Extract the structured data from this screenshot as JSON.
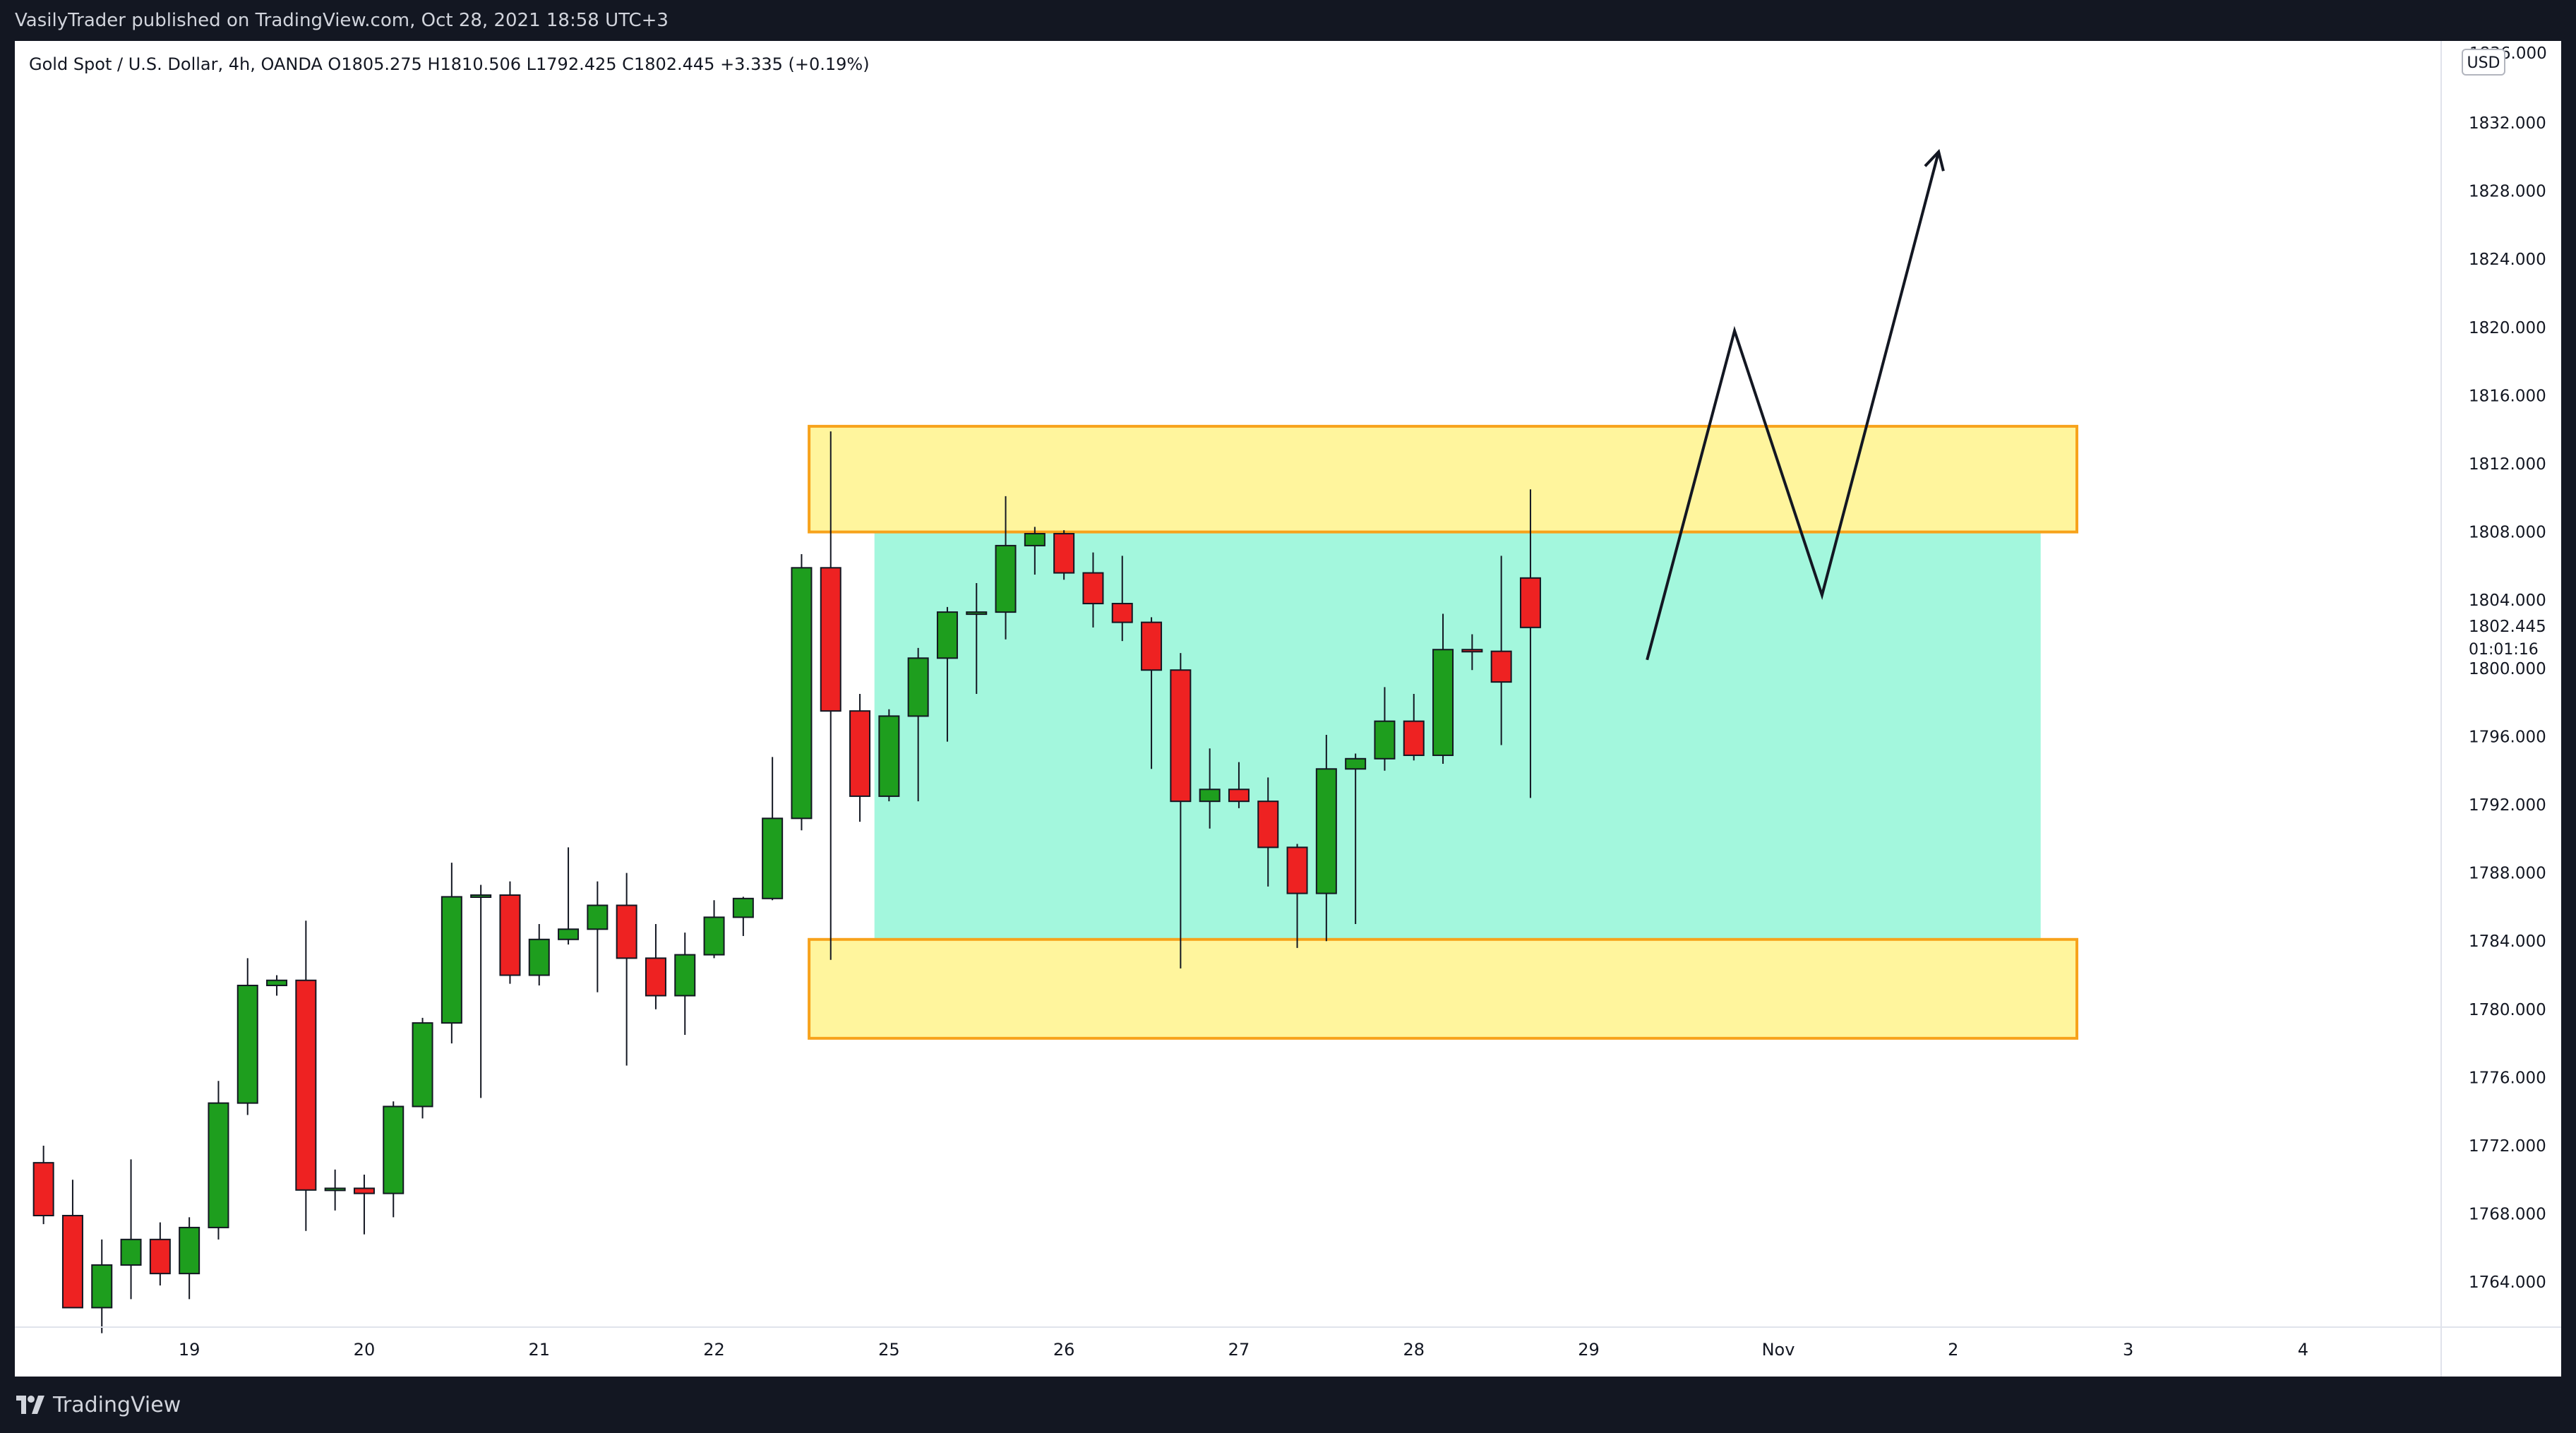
{
  "header": {
    "publisher_text": "VasilyTrader published on TradingView.com, Oct 28, 2021 18:58 UTC+3"
  },
  "legend": {
    "text": "Gold Spot / U.S. Dollar, 4h, OANDA  O1805.275  H1810.506  L1792.425  C1802.445  +3.335 (+0.19%)"
  },
  "price_axis": {
    "currency": "USD",
    "top_label": "1836.000",
    "last_price": "1802.445",
    "countdown": "01:01:16"
  },
  "footer": {
    "brand": "TradingView"
  },
  "colors": {
    "up": "#1e9e1e",
    "down": "#ee2222",
    "zone_fill": "#fff59d",
    "zone_border": "#f7a21b",
    "range_fill": "#a3f7dd",
    "background": "#ffffff",
    "frame": "#131722"
  },
  "chart_data": {
    "type": "candlestick",
    "symbol": "Gold Spot / U.S. Dollar",
    "interval": "4h",
    "exchange": "OANDA",
    "ylim": [
      1760,
      1836
    ],
    "y_ticks": [
      1764,
      1768,
      1772,
      1776,
      1780,
      1784,
      1788,
      1792,
      1796,
      1800,
      1804,
      1808,
      1812,
      1816,
      1820,
      1824,
      1828,
      1832
    ],
    "x_labels": [
      {
        "label": "19",
        "slot": 5
      },
      {
        "label": "20",
        "slot": 11
      },
      {
        "label": "21",
        "slot": 17
      },
      {
        "label": "22",
        "slot": 23
      },
      {
        "label": "25",
        "slot": 29
      },
      {
        "label": "26",
        "slot": 35
      },
      {
        "label": "27",
        "slot": 41
      },
      {
        "label": "28",
        "slot": 47
      },
      {
        "label": "29",
        "slot": 53
      },
      {
        "label": "Nov",
        "slot": 59.5
      },
      {
        "label": "2",
        "slot": 65.5
      },
      {
        "label": "3",
        "slot": 71.5
      },
      {
        "label": "4",
        "slot": 77.5
      }
    ],
    "candles": [
      {
        "o": 1771.0,
        "h": 1772.0,
        "l": 1767.4,
        "c": 1767.9
      },
      {
        "o": 1767.9,
        "h": 1770.0,
        "l": 1763.0,
        "c": 1762.5
      },
      {
        "o": 1762.5,
        "h": 1766.5,
        "l": 1761.0,
        "c": 1765.0
      },
      {
        "o": 1765.0,
        "h": 1771.2,
        "l": 1763.0,
        "c": 1766.5
      },
      {
        "o": 1766.5,
        "h": 1767.5,
        "l": 1763.8,
        "c": 1764.5
      },
      {
        "o": 1764.5,
        "h": 1767.8,
        "l": 1763.0,
        "c": 1767.2
      },
      {
        "o": 1767.2,
        "h": 1775.8,
        "l": 1766.5,
        "c": 1774.5
      },
      {
        "o": 1774.5,
        "h": 1783.0,
        "l": 1773.8,
        "c": 1781.4
      },
      {
        "o": 1781.4,
        "h": 1782.0,
        "l": 1780.8,
        "c": 1781.7
      },
      {
        "o": 1781.7,
        "h": 1785.2,
        "l": 1767.0,
        "c": 1769.4
      },
      {
        "o": 1769.4,
        "h": 1770.6,
        "l": 1768.2,
        "c": 1769.5
      },
      {
        "o": 1769.5,
        "h": 1770.3,
        "l": 1766.8,
        "c": 1769.2
      },
      {
        "o": 1769.2,
        "h": 1774.6,
        "l": 1767.8,
        "c": 1774.3
      },
      {
        "o": 1774.3,
        "h": 1779.5,
        "l": 1773.6,
        "c": 1779.2
      },
      {
        "o": 1779.2,
        "h": 1788.6,
        "l": 1778.0,
        "c": 1786.6
      },
      {
        "o": 1786.6,
        "h": 1787.3,
        "l": 1774.8,
        "c": 1786.7
      },
      {
        "o": 1786.7,
        "h": 1787.5,
        "l": 1781.5,
        "c": 1782.0
      },
      {
        "o": 1782.0,
        "h": 1785.0,
        "l": 1781.4,
        "c": 1784.1
      },
      {
        "o": 1784.1,
        "h": 1789.5,
        "l": 1783.8,
        "c": 1784.7
      },
      {
        "o": 1784.7,
        "h": 1787.5,
        "l": 1781.0,
        "c": 1786.1
      },
      {
        "o": 1786.1,
        "h": 1788.0,
        "l": 1776.7,
        "c": 1783.0
      },
      {
        "o": 1783.0,
        "h": 1785.0,
        "l": 1780.0,
        "c": 1780.8
      },
      {
        "o": 1780.8,
        "h": 1784.5,
        "l": 1778.5,
        "c": 1783.2
      },
      {
        "o": 1783.2,
        "h": 1786.4,
        "l": 1783.0,
        "c": 1785.4
      },
      {
        "o": 1785.4,
        "h": 1786.6,
        "l": 1784.3,
        "c": 1786.5
      },
      {
        "o": 1786.5,
        "h": 1794.8,
        "l": 1786.4,
        "c": 1791.2
      },
      {
        "o": 1791.2,
        "h": 1806.7,
        "l": 1790.5,
        "c": 1805.9
      },
      {
        "o": 1805.9,
        "h": 1813.9,
        "l": 1782.9,
        "c": 1797.5
      },
      {
        "o": 1797.5,
        "h": 1798.5,
        "l": 1791.0,
        "c": 1792.5
      },
      {
        "o": 1792.5,
        "h": 1797.6,
        "l": 1792.2,
        "c": 1797.2
      },
      {
        "o": 1797.2,
        "h": 1801.2,
        "l": 1792.2,
        "c": 1800.6
      },
      {
        "o": 1800.6,
        "h": 1803.6,
        "l": 1795.7,
        "c": 1803.3
      },
      {
        "o": 1803.3,
        "h": 1805.0,
        "l": 1798.5,
        "c": 1803.3
      },
      {
        "o": 1803.3,
        "h": 1810.1,
        "l": 1801.7,
        "c": 1807.2
      },
      {
        "o": 1807.2,
        "h": 1808.3,
        "l": 1805.5,
        "c": 1807.9
      },
      {
        "o": 1807.9,
        "h": 1808.1,
        "l": 1805.2,
        "c": 1805.6
      },
      {
        "o": 1805.6,
        "h": 1806.8,
        "l": 1802.4,
        "c": 1803.8
      },
      {
        "o": 1803.8,
        "h": 1806.6,
        "l": 1801.6,
        "c": 1802.7
      },
      {
        "o": 1802.7,
        "h": 1803.0,
        "l": 1794.1,
        "c": 1799.9
      },
      {
        "o": 1799.9,
        "h": 1800.9,
        "l": 1782.4,
        "c": 1792.2
      },
      {
        "o": 1792.2,
        "h": 1795.3,
        "l": 1790.6,
        "c": 1792.9
      },
      {
        "o": 1792.9,
        "h": 1794.5,
        "l": 1791.8,
        "c": 1792.2
      },
      {
        "o": 1792.2,
        "h": 1793.6,
        "l": 1787.2,
        "c": 1789.5
      },
      {
        "o": 1789.5,
        "h": 1789.7,
        "l": 1783.6,
        "c": 1786.8
      },
      {
        "o": 1786.8,
        "h": 1796.1,
        "l": 1784.0,
        "c": 1794.1
      },
      {
        "o": 1794.1,
        "h": 1795.0,
        "l": 1785.0,
        "c": 1794.7
      },
      {
        "o": 1794.7,
        "h": 1798.9,
        "l": 1794.0,
        "c": 1796.9
      },
      {
        "o": 1796.9,
        "h": 1798.5,
        "l": 1794.6,
        "c": 1794.9
      },
      {
        "o": 1794.9,
        "h": 1803.2,
        "l": 1794.4,
        "c": 1801.1
      },
      {
        "o": 1801.1,
        "h": 1802.0,
        "l": 1799.9,
        "c": 1801.0
      },
      {
        "o": 1801.0,
        "h": 1806.6,
        "l": 1795.5,
        "c": 1799.2
      },
      {
        "o": 1805.3,
        "h": 1810.5,
        "l": 1792.4,
        "c": 1802.4
      }
    ],
    "zones": [
      {
        "name": "resistance",
        "from_slot": 27,
        "to_slot": 70,
        "y1": 1808.0,
        "y2": 1814.2
      },
      {
        "name": "support",
        "from_slot": 27,
        "to_slot": 70,
        "y1": 1778.3,
        "y2": 1784.1
      }
    ],
    "range_box": {
      "from_slot": 29,
      "to_slot": 69,
      "y1": 1784.1,
      "y2": 1808.0
    },
    "projection_path": [
      {
        "slot": 55,
        "y": 1800.5
      },
      {
        "slot": 58,
        "y": 1819.8
      },
      {
        "slot": 61,
        "y": 1804.3
      },
      {
        "slot": 65,
        "y": 1830.3
      }
    ]
  }
}
